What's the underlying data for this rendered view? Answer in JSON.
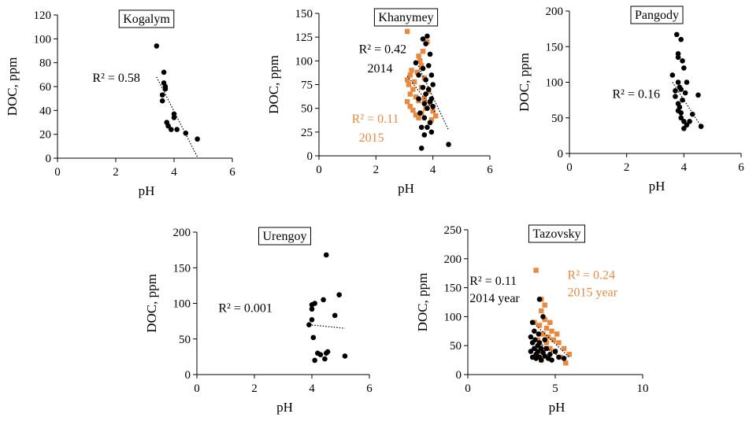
{
  "colors": {
    "black_series": "#000000",
    "orange_series": "#e8893f",
    "trend": "#000000"
  },
  "chart_data": [
    {
      "type": "scatter",
      "title": "Kogalym",
      "xlabel": "pH",
      "ylabel": "DOC, ppm",
      "xlim": [
        0,
        6
      ],
      "ylim": [
        0,
        120
      ],
      "xticks": [
        0,
        2,
        4,
        6
      ],
      "yticks": [
        0,
        20,
        40,
        60,
        80,
        100,
        120
      ],
      "grid": false,
      "series": [
        {
          "color": "black",
          "marker": "circle",
          "points": [
            [
              3.4,
              94
            ],
            [
              3.6,
              53
            ],
            [
              3.6,
              48
            ],
            [
              3.65,
              72
            ],
            [
              3.65,
              63
            ],
            [
              3.7,
              60
            ],
            [
              3.7,
              58
            ],
            [
              3.75,
              30
            ],
            [
              3.8,
              27
            ],
            [
              3.9,
              24
            ],
            [
              4.0,
              37
            ],
            [
              4.0,
              34
            ],
            [
              4.1,
              24
            ],
            [
              4.4,
              21
            ],
            [
              4.8,
              16
            ]
          ],
          "trend": [
            [
              3.4,
              68
            ],
            [
              4.8,
              1
            ]
          ]
        }
      ],
      "annotations": [
        {
          "text": "R² = 0.58",
          "x": 1.2,
          "y": 64,
          "color": "black"
        }
      ]
    },
    {
      "type": "scatter",
      "title": "Khanymey",
      "xlabel": "pH",
      "ylabel": "DOC, ppm",
      "xlim": [
        0,
        6
      ],
      "ylim": [
        0,
        150
      ],
      "xticks": [
        0,
        2,
        4,
        6
      ],
      "yticks": [
        0,
        25,
        50,
        75,
        100,
        125,
        150
      ],
      "grid": false,
      "series": [
        {
          "color": "orange",
          "marker": "square",
          "points": [
            [
              3.1,
              131
            ],
            [
              3.1,
              80
            ],
            [
              3.1,
              57
            ],
            [
              3.15,
              75
            ],
            [
              3.2,
              85
            ],
            [
              3.2,
              65
            ],
            [
              3.2,
              52
            ],
            [
              3.25,
              90
            ],
            [
              3.3,
              70
            ],
            [
              3.3,
              48
            ],
            [
              3.35,
              78
            ],
            [
              3.4,
              62
            ],
            [
              3.4,
              43
            ],
            [
              3.45,
              88
            ],
            [
              3.5,
              105
            ],
            [
              3.5,
              58
            ],
            [
              3.5,
              40
            ],
            [
              3.55,
              100
            ],
            [
              3.6,
              95
            ],
            [
              3.6,
              72
            ],
            [
              3.6,
              45
            ],
            [
              3.65,
              110
            ],
            [
              3.7,
              82
            ],
            [
              3.7,
              60
            ],
            [
              3.75,
              50
            ],
            [
              3.8,
              120
            ],
            [
              3.85,
              68
            ],
            [
              3.9,
              55
            ],
            [
              3.95,
              38
            ],
            [
              4.0,
              47
            ],
            [
              4.1,
              42
            ]
          ],
          "trend": [
            [
              3.1,
              84
            ],
            [
              4.1,
              45
            ]
          ]
        },
        {
          "color": "black",
          "marker": "circle",
          "points": [
            [
              3.4,
              98
            ],
            [
              3.5,
              85
            ],
            [
              3.5,
              60
            ],
            [
              3.55,
              45
            ],
            [
              3.6,
              30
            ],
            [
              3.6,
              8
            ],
            [
              3.65,
              123
            ],
            [
              3.65,
              92
            ],
            [
              3.65,
              72
            ],
            [
              3.7,
              55
            ],
            [
              3.7,
              40
            ],
            [
              3.7,
              22
            ],
            [
              3.75,
              118
            ],
            [
              3.75,
              80
            ],
            [
              3.75,
              65
            ],
            [
              3.8,
              126
            ],
            [
              3.8,
              50
            ],
            [
              3.8,
              30
            ],
            [
              3.85,
              95
            ],
            [
              3.85,
              70
            ],
            [
              3.9,
              107
            ],
            [
              3.9,
              57
            ],
            [
              3.9,
              35
            ],
            [
              3.95,
              85
            ],
            [
              3.95,
              60
            ],
            [
              3.95,
              25
            ],
            [
              4.0,
              75
            ],
            [
              4.0,
              52
            ],
            [
              4.55,
              12
            ]
          ],
          "trend": [
            [
              3.4,
              100
            ],
            [
              4.55,
              27
            ]
          ]
        }
      ],
      "annotations": [
        {
          "text": "R² = 0.42",
          "x": 1.4,
          "y": 108,
          "color": "black"
        },
        {
          "text": "2014",
          "x": 1.7,
          "y": 88,
          "color": "black"
        },
        {
          "text": "R² = 0.11",
          "x": 1.15,
          "y": 35,
          "color": "orange"
        },
        {
          "text": "2015",
          "x": 1.4,
          "y": 15,
          "color": "orange"
        }
      ]
    },
    {
      "type": "scatter",
      "title": "Pangody",
      "xlabel": "pH",
      "ylabel": "DOC, ppm",
      "xlim": [
        0,
        6
      ],
      "ylim": [
        0,
        200
      ],
      "xticks": [
        0,
        2,
        4,
        6
      ],
      "yticks": [
        0,
        50,
        100,
        150,
        200
      ],
      "grid": false,
      "series": [
        {
          "color": "black",
          "marker": "circle",
          "points": [
            [
              3.6,
              110
            ],
            [
              3.7,
              88
            ],
            [
              3.7,
              80
            ],
            [
              3.75,
              167
            ],
            [
              3.8,
              140
            ],
            [
              3.8,
              135
            ],
            [
              3.8,
              100
            ],
            [
              3.8,
              70
            ],
            [
              3.8,
              60
            ],
            [
              3.85,
              93
            ],
            [
              3.85,
              65
            ],
            [
              3.9,
              160
            ],
            [
              3.9,
              90
            ],
            [
              3.9,
              57
            ],
            [
              3.9,
              50
            ],
            [
              3.95,
              130
            ],
            [
              3.95,
              75
            ],
            [
              4.0,
              120
            ],
            [
              4.0,
              45
            ],
            [
              4.0,
              35
            ],
            [
              4.05,
              85
            ],
            [
              4.1,
              100
            ],
            [
              4.1,
              40
            ],
            [
              4.2,
              45
            ],
            [
              4.3,
              55
            ],
            [
              4.5,
              82
            ],
            [
              4.6,
              38
            ]
          ],
          "trend": [
            [
              3.6,
              100
            ],
            [
              4.6,
              38
            ]
          ]
        }
      ],
      "annotations": [
        {
          "text": "R² = 0.16",
          "x": 1.5,
          "y": 78,
          "color": "black"
        }
      ]
    },
    {
      "type": "scatter",
      "title": "Urengoy",
      "xlabel": "pH",
      "ylabel": "DOC, ppm",
      "xlim": [
        0,
        6
      ],
      "ylim": [
        0,
        200
      ],
      "xticks": [
        0,
        2,
        4,
        6
      ],
      "yticks": [
        0,
        50,
        100,
        150,
        200
      ],
      "grid": false,
      "series": [
        {
          "color": "black",
          "marker": "circle",
          "points": [
            [
              3.9,
              70
            ],
            [
              4.0,
              98
            ],
            [
              4.0,
              92
            ],
            [
              4.0,
              77
            ],
            [
              4.05,
              52
            ],
            [
              4.1,
              100
            ],
            [
              4.1,
              20
            ],
            [
              4.2,
              30
            ],
            [
              4.3,
              28
            ],
            [
              4.4,
              105
            ],
            [
              4.45,
              22
            ],
            [
              4.5,
              168
            ],
            [
              4.5,
              30
            ],
            [
              4.55,
              32
            ],
            [
              4.8,
              83
            ],
            [
              4.95,
              112
            ],
            [
              5.15,
              26
            ]
          ],
          "trend": [
            [
              3.9,
              70
            ],
            [
              5.15,
              65
            ]
          ]
        }
      ],
      "annotations": [
        {
          "text": "R² = 0.001",
          "x": 0.75,
          "y": 88,
          "color": "black"
        }
      ]
    },
    {
      "type": "scatter",
      "title": "Tazovsky",
      "xlabel": "pH",
      "ylabel": "DOC, ppm",
      "xlim": [
        0,
        10
      ],
      "ylim": [
        0,
        250
      ],
      "xticks": [
        0,
        5,
        10
      ],
      "yticks": [
        0,
        50,
        100,
        150,
        200,
        250
      ],
      "grid": false,
      "series": [
        {
          "color": "orange",
          "marker": "square",
          "points": [
            [
              3.8,
              90
            ],
            [
              3.9,
              180
            ],
            [
              4.0,
              60
            ],
            [
              4.0,
              35
            ],
            [
              4.1,
              85
            ],
            [
              4.1,
              50
            ],
            [
              4.2,
              130
            ],
            [
              4.2,
              110
            ],
            [
              4.2,
              25
            ],
            [
              4.3,
              70
            ],
            [
              4.3,
              40
            ],
            [
              4.4,
              120
            ],
            [
              4.4,
              95
            ],
            [
              4.5,
              80
            ],
            [
              4.5,
              55
            ],
            [
              4.6,
              65
            ],
            [
              4.6,
              30
            ],
            [
              4.7,
              90
            ],
            [
              4.7,
              45
            ],
            [
              4.8,
              75
            ],
            [
              4.9,
              60
            ],
            [
              5.0,
              40
            ],
            [
              5.1,
              70
            ],
            [
              5.2,
              55
            ],
            [
              5.3,
              30
            ],
            [
              5.5,
              45
            ],
            [
              5.6,
              20
            ],
            [
              5.8,
              35
            ]
          ],
          "trend": [
            [
              3.8,
              88
            ],
            [
              5.8,
              30
            ]
          ]
        },
        {
          "color": "black",
          "marker": "circle",
          "points": [
            [
              3.6,
              65
            ],
            [
              3.6,
              40
            ],
            [
              3.7,
              90
            ],
            [
              3.7,
              55
            ],
            [
              3.7,
              30
            ],
            [
              3.8,
              75
            ],
            [
              3.8,
              45
            ],
            [
              3.85,
              60
            ],
            [
              3.9,
              35
            ],
            [
              3.9,
              28
            ],
            [
              4.0,
              50
            ],
            [
              4.0,
              40
            ],
            [
              4.05,
              70
            ],
            [
              4.1,
              130
            ],
            [
              4.1,
              55
            ],
            [
              4.1,
              30
            ],
            [
              4.2,
              45
            ],
            [
              4.2,
              25
            ],
            [
              4.3,
              100
            ],
            [
              4.3,
              38
            ],
            [
              4.4,
              60
            ],
            [
              4.4,
              32
            ],
            [
              4.5,
              45
            ],
            [
              4.6,
              28
            ],
            [
              4.7,
              35
            ],
            [
              4.8,
              25
            ],
            [
              5.0,
              40
            ],
            [
              5.2,
              30
            ],
            [
              5.5,
              28
            ]
          ],
          "trend": [
            [
              3.6,
              65
            ],
            [
              5.5,
              25
            ]
          ]
        }
      ],
      "annotations": [
        {
          "text": "R² = 0.11",
          "x": 0.1,
          "y": 155,
          "color": "black"
        },
        {
          "text": "2014 year",
          "x": 0.1,
          "y": 125,
          "color": "black"
        },
        {
          "text": "R² = 0.24",
          "x": 5.7,
          "y": 165,
          "color": "orange"
        },
        {
          "text": "2015 year",
          "x": 5.7,
          "y": 135,
          "color": "orange"
        }
      ]
    }
  ]
}
